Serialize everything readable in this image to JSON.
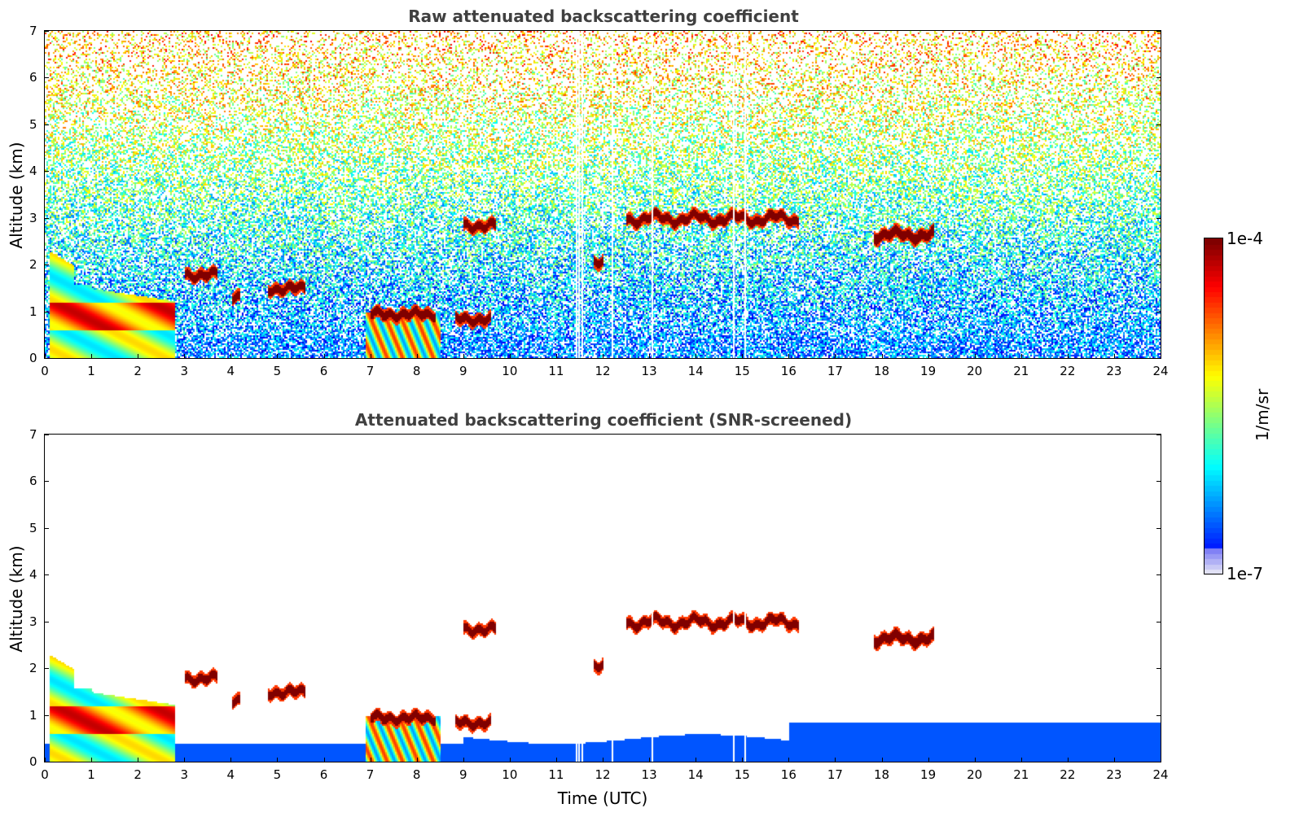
{
  "chart_data": [
    {
      "type": "heatmap",
      "title": "Raw attenuated backscattering coefficient",
      "xlabel": "",
      "ylabel": "Altitude (km)",
      "xlim": [
        0,
        24
      ],
      "ylim": [
        0,
        7
      ],
      "xticks": [
        "0",
        "1",
        "2",
        "3",
        "4",
        "5",
        "6",
        "7",
        "8",
        "9",
        "10",
        "11",
        "12",
        "13",
        "14",
        "15",
        "16",
        "17",
        "18",
        "19",
        "20",
        "21",
        "22",
        "23",
        "24"
      ],
      "yticks": [
        "0",
        "1",
        "2",
        "3",
        "4",
        "5",
        "6",
        "7"
      ],
      "features": [
        {
          "name": "boundary layer / low cloud",
          "t_start": 0.1,
          "t_end": 2.8,
          "alt_top_km": 2.3
        },
        {
          "name": "aerosol/cloud layer",
          "t_start": 7.0,
          "t_end": 8.5,
          "alt_top_km": 1.0
        },
        {
          "name": "cloud layer",
          "t_start": 12.5,
          "t_end": 16.2,
          "alt_km": 3.0
        },
        {
          "name": "cloud layer",
          "t_start": 17.8,
          "t_end": 19.1,
          "alt_km": 2.65
        }
      ]
    },
    {
      "type": "heatmap",
      "title": "Attenuated backscattering coefficient (SNR-screened)",
      "xlabel": "Time (UTC)",
      "ylabel": "Altitude (km)",
      "xlim": [
        0,
        24
      ],
      "ylim": [
        0,
        7
      ],
      "xticks": [
        "0",
        "1",
        "2",
        "3",
        "4",
        "5",
        "6",
        "7",
        "8",
        "9",
        "10",
        "11",
        "12",
        "13",
        "14",
        "15",
        "16",
        "17",
        "18",
        "19",
        "20",
        "21",
        "22",
        "23",
        "24"
      ],
      "yticks": [
        "0",
        "1",
        "2",
        "3",
        "4",
        "5",
        "6",
        "7"
      ]
    }
  ],
  "colorbar": {
    "label": "1/m/sr",
    "min_label": "1e-7",
    "max_label": "1e-4",
    "scale": "log",
    "colormap": "jet"
  }
}
